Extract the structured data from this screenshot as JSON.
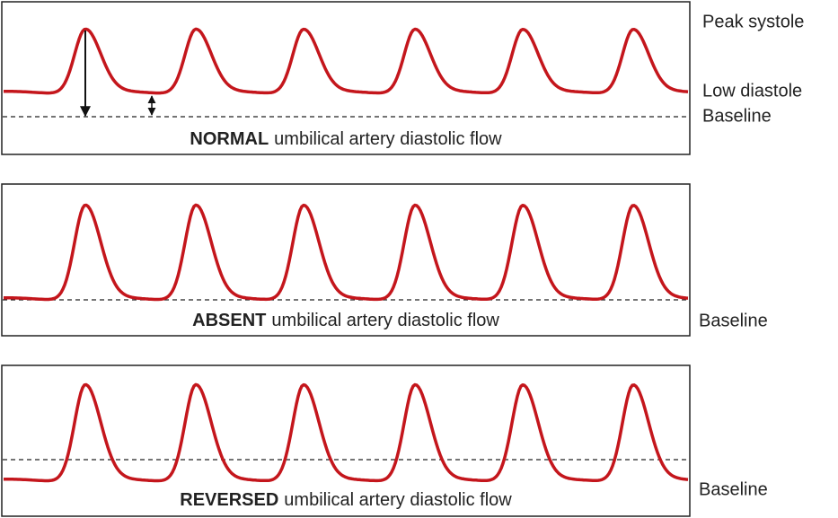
{
  "panels": [
    {
      "caption": {
        "bold": "NORMAL",
        "rest": "umbilical artery diastolic flow"
      },
      "labels": [
        "Peak systole",
        "Low diastole",
        "Baseline"
      ]
    },
    {
      "caption": {
        "bold": "ABSENT",
        "rest": "umbilical artery diastolic flow"
      },
      "labels": [
        "Baseline"
      ]
    },
    {
      "caption": {
        "bold": "REVERSED",
        "rest": "umbilical artery diastolic flow"
      },
      "labels": [
        "Baseline"
      ]
    }
  ]
}
